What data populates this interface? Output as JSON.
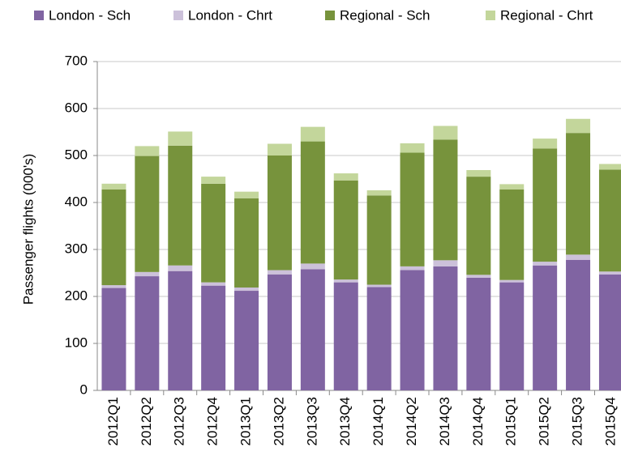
{
  "chart_data": {
    "type": "stacked-bar",
    "y_label": "Passenger flights (000's)",
    "categories": [
      "2012Q1",
      "2012Q2",
      "2012Q3",
      "2012Q4",
      "2013Q1",
      "2013Q2",
      "2013Q3",
      "2013Q4",
      "2014Q1",
      "2014Q2",
      "2014Q3",
      "2014Q4",
      "2015Q1",
      "2015Q2",
      "2015Q3",
      "2015Q4"
    ],
    "series": [
      {
        "name": "London - Sch",
        "color": "#8064a2",
        "values": [
          218,
          243,
          254,
          223,
          212,
          247,
          258,
          230,
          220,
          256,
          264,
          240,
          230,
          266,
          278,
          247
        ]
      },
      {
        "name": "London - Chrt",
        "color": "#ccc1da",
        "values": [
          6,
          9,
          12,
          7,
          7,
          9,
          12,
          6,
          5,
          8,
          13,
          6,
          5,
          8,
          11,
          6
        ]
      },
      {
        "name": "Regional - Sch",
        "color": "#77933c",
        "values": [
          204,
          247,
          255,
          210,
          190,
          244,
          260,
          211,
          190,
          242,
          257,
          209,
          193,
          241,
          259,
          217
        ]
      },
      {
        "name": "Regional - Chrt",
        "color": "#c3d69b",
        "values": [
          12,
          21,
          30,
          15,
          14,
          25,
          31,
          15,
          11,
          20,
          29,
          14,
          11,
          21,
          30,
          12
        ]
      }
    ],
    "ylim": [
      0,
      700
    ],
    "yticks": [
      0,
      100,
      200,
      300,
      400,
      500,
      600,
      700
    ],
    "grid": true,
    "legend": "top"
  }
}
